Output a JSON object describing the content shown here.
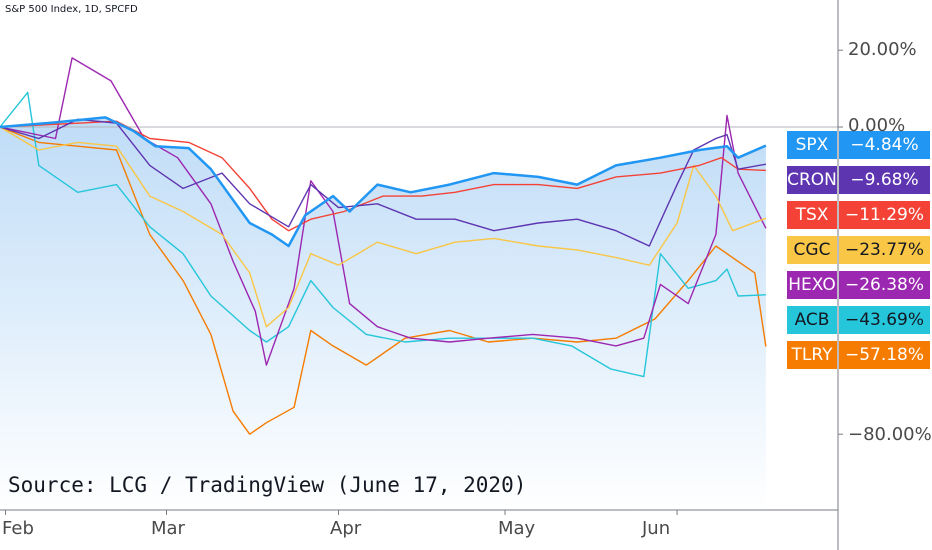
{
  "header": {
    "title": "S&P 500 Index, 1D, SPCFD"
  },
  "source": {
    "text": "Source: LCG / TradingView (June 17, 2020)"
  },
  "chart_data": {
    "type": "line",
    "y_unit": "%",
    "y_tick_values": [
      20,
      0,
      -80
    ],
    "y_tick_labels": [
      "20.00%",
      "0.00%",
      "−80.00%"
    ],
    "ylim": [
      -100,
      30
    ],
    "x_tick_labels": [
      "Feb",
      "Mar",
      "Apr",
      "May",
      "Jun"
    ],
    "x_tick_dates": [
      "2020-02-01",
      "2020-03-01",
      "2020-04-01",
      "2020-05-01",
      "2020-06-01"
    ],
    "xlim": [
      "2020-01-31",
      "2020-06-30"
    ],
    "baseline": 0,
    "grid": false,
    "series": [
      {
        "name": "SPX",
        "color": "#2196f3",
        "last_label": "−4.84%",
        "area": true,
        "points": [
          [
            "2020-01-31",
            0
          ],
          [
            "2020-02-10",
            1.2
          ],
          [
            "2020-02-19",
            2.5
          ],
          [
            "2020-02-24",
            -1
          ],
          [
            "2020-02-28",
            -5
          ],
          [
            "2020-03-05",
            -5.5
          ],
          [
            "2020-03-09",
            -11
          ],
          [
            "2020-03-12",
            -17
          ],
          [
            "2020-03-16",
            -25
          ],
          [
            "2020-03-20",
            -28
          ],
          [
            "2020-03-23",
            -31
          ],
          [
            "2020-03-26",
            -23
          ],
          [
            "2020-03-31",
            -18
          ],
          [
            "2020-04-03",
            -22
          ],
          [
            "2020-04-08",
            -15
          ],
          [
            "2020-04-14",
            -17
          ],
          [
            "2020-04-21",
            -15
          ],
          [
            "2020-04-29",
            -12
          ],
          [
            "2020-05-07",
            -13
          ],
          [
            "2020-05-14",
            -15
          ],
          [
            "2020-05-21",
            -10
          ],
          [
            "2020-05-29",
            -8
          ],
          [
            "2020-06-05",
            -6
          ],
          [
            "2020-06-10",
            -5
          ],
          [
            "2020-06-12",
            -8
          ],
          [
            "2020-06-17",
            -4.84
          ]
        ]
      },
      {
        "name": "CRON",
        "color": "#5e35b1",
        "last_label": "−9.68%",
        "area": false,
        "points": [
          [
            "2020-01-31",
            0
          ],
          [
            "2020-02-07",
            -3
          ],
          [
            "2020-02-14",
            2
          ],
          [
            "2020-02-21",
            1
          ],
          [
            "2020-02-27",
            -10
          ],
          [
            "2020-03-04",
            -16
          ],
          [
            "2020-03-11",
            -12
          ],
          [
            "2020-03-16",
            -20
          ],
          [
            "2020-03-23",
            -26
          ],
          [
            "2020-03-27",
            -15
          ],
          [
            "2020-04-01",
            -21
          ],
          [
            "2020-04-08",
            -20
          ],
          [
            "2020-04-15",
            -24
          ],
          [
            "2020-04-22",
            -24
          ],
          [
            "2020-04-29",
            -27
          ],
          [
            "2020-05-07",
            -25
          ],
          [
            "2020-05-14",
            -24
          ],
          [
            "2020-05-21",
            -27
          ],
          [
            "2020-05-27",
            -31
          ],
          [
            "2020-06-01",
            -15
          ],
          [
            "2020-06-04",
            -6
          ],
          [
            "2020-06-08",
            -3
          ],
          [
            "2020-06-10",
            -2
          ],
          [
            "2020-06-12",
            -11
          ],
          [
            "2020-06-17",
            -9.68
          ]
        ]
      },
      {
        "name": "TSX",
        "color": "#f44336",
        "last_label": "−11.29%",
        "area": false,
        "points": [
          [
            "2020-01-31",
            0
          ],
          [
            "2020-02-14",
            1
          ],
          [
            "2020-02-21",
            1.5
          ],
          [
            "2020-02-27",
            -3
          ],
          [
            "2020-03-05",
            -4
          ],
          [
            "2020-03-11",
            -8
          ],
          [
            "2020-03-16",
            -16
          ],
          [
            "2020-03-20",
            -24
          ],
          [
            "2020-03-23",
            -27
          ],
          [
            "2020-03-27",
            -24
          ],
          [
            "2020-04-02",
            -22
          ],
          [
            "2020-04-09",
            -18
          ],
          [
            "2020-04-16",
            -18
          ],
          [
            "2020-04-22",
            -17
          ],
          [
            "2020-04-29",
            -15
          ],
          [
            "2020-05-07",
            -15
          ],
          [
            "2020-05-14",
            -16
          ],
          [
            "2020-05-21",
            -13
          ],
          [
            "2020-05-29",
            -12
          ],
          [
            "2020-06-05",
            -10
          ],
          [
            "2020-06-09",
            -8
          ],
          [
            "2020-06-12",
            -11
          ],
          [
            "2020-06-17",
            -11.29
          ]
        ]
      },
      {
        "name": "CGC",
        "color": "#f9c646",
        "last_label": "−23.77%",
        "area": false,
        "points": [
          [
            "2020-01-31",
            0
          ],
          [
            "2020-02-07",
            -6
          ],
          [
            "2020-02-14",
            -4
          ],
          [
            "2020-02-21",
            -5
          ],
          [
            "2020-02-27",
            -18
          ],
          [
            "2020-03-04",
            -22
          ],
          [
            "2020-03-11",
            -28
          ],
          [
            "2020-03-16",
            -38
          ],
          [
            "2020-03-19",
            -52
          ],
          [
            "2020-03-23",
            -47
          ],
          [
            "2020-03-27",
            -33
          ],
          [
            "2020-04-01",
            -36
          ],
          [
            "2020-04-08",
            -30
          ],
          [
            "2020-04-15",
            -33
          ],
          [
            "2020-04-22",
            -30
          ],
          [
            "2020-04-29",
            -29
          ],
          [
            "2020-05-07",
            -31
          ],
          [
            "2020-05-14",
            -32
          ],
          [
            "2020-05-21",
            -34
          ],
          [
            "2020-05-27",
            -36
          ],
          [
            "2020-06-01",
            -25
          ],
          [
            "2020-06-04",
            -10
          ],
          [
            "2020-06-08",
            -18
          ],
          [
            "2020-06-11",
            -27
          ],
          [
            "2020-06-17",
            -23.77
          ]
        ]
      },
      {
        "name": "HEXO",
        "color": "#9c27b0",
        "last_label": "−26.38%",
        "area": false,
        "points": [
          [
            "2020-01-31",
            0
          ],
          [
            "2020-02-10",
            -3
          ],
          [
            "2020-02-13",
            18
          ],
          [
            "2020-02-20",
            12
          ],
          [
            "2020-02-26",
            -3
          ],
          [
            "2020-03-03",
            -8
          ],
          [
            "2020-03-09",
            -20
          ],
          [
            "2020-03-13",
            -35
          ],
          [
            "2020-03-17",
            -48
          ],
          [
            "2020-03-19",
            -62
          ],
          [
            "2020-03-24",
            -42
          ],
          [
            "2020-03-27",
            -14
          ],
          [
            "2020-03-31",
            -22
          ],
          [
            "2020-04-03",
            -46
          ],
          [
            "2020-04-08",
            -52
          ],
          [
            "2020-04-14",
            -55
          ],
          [
            "2020-04-21",
            -56
          ],
          [
            "2020-04-28",
            -55
          ],
          [
            "2020-05-06",
            -54
          ],
          [
            "2020-05-14",
            -55
          ],
          [
            "2020-05-21",
            -57
          ],
          [
            "2020-05-26",
            -55
          ],
          [
            "2020-05-29",
            -41
          ],
          [
            "2020-06-03",
            -46
          ],
          [
            "2020-06-08",
            -28
          ],
          [
            "2020-06-10",
            3
          ],
          [
            "2020-06-12",
            -12
          ],
          [
            "2020-06-17",
            -26.38
          ]
        ]
      },
      {
        "name": "ACB",
        "color": "#26c6da",
        "last_label": "−43.69%",
        "area": false,
        "points": [
          [
            "2020-01-31",
            0
          ],
          [
            "2020-02-05",
            9
          ],
          [
            "2020-02-07",
            -10
          ],
          [
            "2020-02-14",
            -17
          ],
          [
            "2020-02-21",
            -15
          ],
          [
            "2020-02-27",
            -26
          ],
          [
            "2020-03-04",
            -33
          ],
          [
            "2020-03-09",
            -44
          ],
          [
            "2020-03-16",
            -53
          ],
          [
            "2020-03-19",
            -56
          ],
          [
            "2020-03-23",
            -52
          ],
          [
            "2020-03-27",
            -40
          ],
          [
            "2020-03-31",
            -47
          ],
          [
            "2020-04-06",
            -54
          ],
          [
            "2020-04-13",
            -56
          ],
          [
            "2020-04-21",
            -55
          ],
          [
            "2020-04-28",
            -55
          ],
          [
            "2020-05-06",
            -55
          ],
          [
            "2020-05-13",
            -57
          ],
          [
            "2020-05-20",
            -63
          ],
          [
            "2020-05-26",
            -65
          ],
          [
            "2020-05-29",
            -33
          ],
          [
            "2020-06-03",
            -42
          ],
          [
            "2020-06-08",
            -40
          ],
          [
            "2020-06-10",
            -37
          ],
          [
            "2020-06-12",
            -44
          ],
          [
            "2020-06-17",
            -43.69
          ]
        ]
      },
      {
        "name": "TLRY",
        "color": "#f57c00",
        "last_label": "−57.18%",
        "area": false,
        "points": [
          [
            "2020-01-31",
            0
          ],
          [
            "2020-02-07",
            -4
          ],
          [
            "2020-02-14",
            -5
          ],
          [
            "2020-02-21",
            -6
          ],
          [
            "2020-02-27",
            -28
          ],
          [
            "2020-03-04",
            -40
          ],
          [
            "2020-03-09",
            -54
          ],
          [
            "2020-03-13",
            -74
          ],
          [
            "2020-03-16",
            -80
          ],
          [
            "2020-03-19",
            -77
          ],
          [
            "2020-03-24",
            -73
          ],
          [
            "2020-03-27",
            -53
          ],
          [
            "2020-03-31",
            -57
          ],
          [
            "2020-04-06",
            -62
          ],
          [
            "2020-04-13",
            -55
          ],
          [
            "2020-04-21",
            -53
          ],
          [
            "2020-04-28",
            -56
          ],
          [
            "2020-05-06",
            -55
          ],
          [
            "2020-05-14",
            -56
          ],
          [
            "2020-05-21",
            -55
          ],
          [
            "2020-05-28",
            -50
          ],
          [
            "2020-06-03",
            -40
          ],
          [
            "2020-06-08",
            -31
          ],
          [
            "2020-06-12",
            -35
          ],
          [
            "2020-06-15",
            -38
          ],
          [
            "2020-06-17",
            -57.18
          ]
        ]
      }
    ]
  },
  "colors": {
    "axis": "#787b86",
    "zero_line": "#b2b5be",
    "area_top": "#bfdcf7",
    "area_bottom": "#ffffff"
  }
}
